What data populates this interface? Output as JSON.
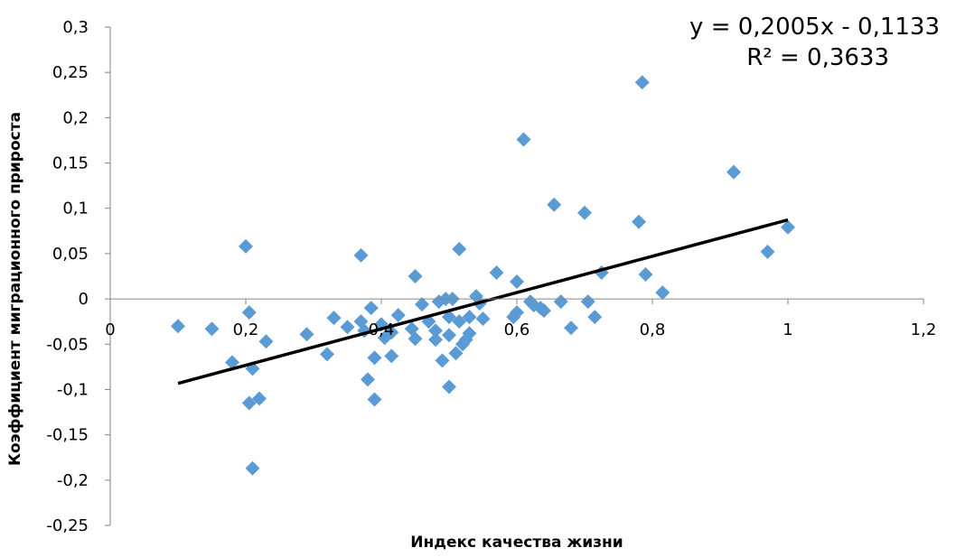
{
  "chart_data": {
    "type": "scatter",
    "title": "",
    "xlabel": "Индекс качества жизни",
    "ylabel": "Коэффициент миграционного прироста",
    "xlim": [
      0,
      1.2
    ],
    "ylim": [
      -0.25,
      0.3
    ],
    "x_ticks": [
      "0",
      "0,2",
      "0,4",
      "0,6",
      "0,8",
      "1",
      "1,2"
    ],
    "y_ticks": [
      "0,3",
      "0,25",
      "0,2",
      "0,15",
      "0,1",
      "0,05",
      "0",
      "-0,05",
      "-0,1",
      "-0,15",
      "-0,2",
      "-0,25"
    ],
    "grid": false,
    "legend": "none",
    "marker": "diamond",
    "marker_color": "#5B9BD5",
    "trendline": {
      "type": "linear",
      "slope": 0.2005,
      "intercept": -0.1133,
      "x_range": [
        0.1,
        1.0
      ],
      "color": "#000000",
      "equation_label": "y = 0,2005x - 0,1133",
      "r2_label": "R² = 0,3633"
    },
    "points": [
      [
        0.1,
        -0.03
      ],
      [
        0.15,
        -0.033
      ],
      [
        0.18,
        -0.07
      ],
      [
        0.2,
        0.058
      ],
      [
        0.205,
        -0.015
      ],
      [
        0.21,
        -0.077
      ],
      [
        0.205,
        -0.115
      ],
      [
        0.22,
        -0.11
      ],
      [
        0.21,
        -0.187
      ],
      [
        0.23,
        -0.047
      ],
      [
        0.29,
        -0.039
      ],
      [
        0.32,
        -0.061
      ],
      [
        0.33,
        -0.021
      ],
      [
        0.35,
        -0.031
      ],
      [
        0.37,
        -0.025
      ],
      [
        0.37,
        0.048
      ],
      [
        0.375,
        -0.035
      ],
      [
        0.38,
        -0.089
      ],
      [
        0.385,
        -0.01
      ],
      [
        0.39,
        -0.065
      ],
      [
        0.39,
        -0.111
      ],
      [
        0.4,
        -0.028
      ],
      [
        0.405,
        -0.043
      ],
      [
        0.415,
        -0.037
      ],
      [
        0.415,
        -0.063
      ],
      [
        0.425,
        -0.018
      ],
      [
        0.445,
        -0.033
      ],
      [
        0.45,
        -0.044
      ],
      [
        0.45,
        0.025
      ],
      [
        0.46,
        -0.006
      ],
      [
        0.47,
        -0.025
      ],
      [
        0.48,
        -0.035
      ],
      [
        0.48,
        -0.045
      ],
      [
        0.485,
        -0.003
      ],
      [
        0.49,
        -0.068
      ],
      [
        0.495,
        0.0
      ],
      [
        0.5,
        -0.02
      ],
      [
        0.5,
        -0.04
      ],
      [
        0.5,
        -0.097
      ],
      [
        0.505,
        0.0
      ],
      [
        0.51,
        -0.06
      ],
      [
        0.515,
        -0.025
      ],
      [
        0.515,
        0.055
      ],
      [
        0.52,
        -0.05
      ],
      [
        0.525,
        -0.045
      ],
      [
        0.53,
        -0.02
      ],
      [
        0.53,
        -0.038
      ],
      [
        0.54,
        0.003
      ],
      [
        0.545,
        -0.005
      ],
      [
        0.55,
        -0.022
      ],
      [
        0.57,
        0.029
      ],
      [
        0.595,
        -0.02
      ],
      [
        0.6,
        -0.015
      ],
      [
        0.6,
        0.019
      ],
      [
        0.61,
        0.176
      ],
      [
        0.62,
        -0.003
      ],
      [
        0.625,
        -0.007
      ],
      [
        0.635,
        -0.01
      ],
      [
        0.64,
        -0.013
      ],
      [
        0.655,
        0.104
      ],
      [
        0.665,
        -0.003
      ],
      [
        0.68,
        -0.032
      ],
      [
        0.7,
        0.095
      ],
      [
        0.705,
        -0.003
      ],
      [
        0.715,
        -0.02
      ],
      [
        0.725,
        0.029
      ],
      [
        0.78,
        0.085
      ],
      [
        0.785,
        0.239
      ],
      [
        0.79,
        0.027
      ],
      [
        0.815,
        0.007
      ],
      [
        0.92,
        0.14
      ],
      [
        0.97,
        0.052
      ],
      [
        1.0,
        0.079
      ]
    ]
  }
}
